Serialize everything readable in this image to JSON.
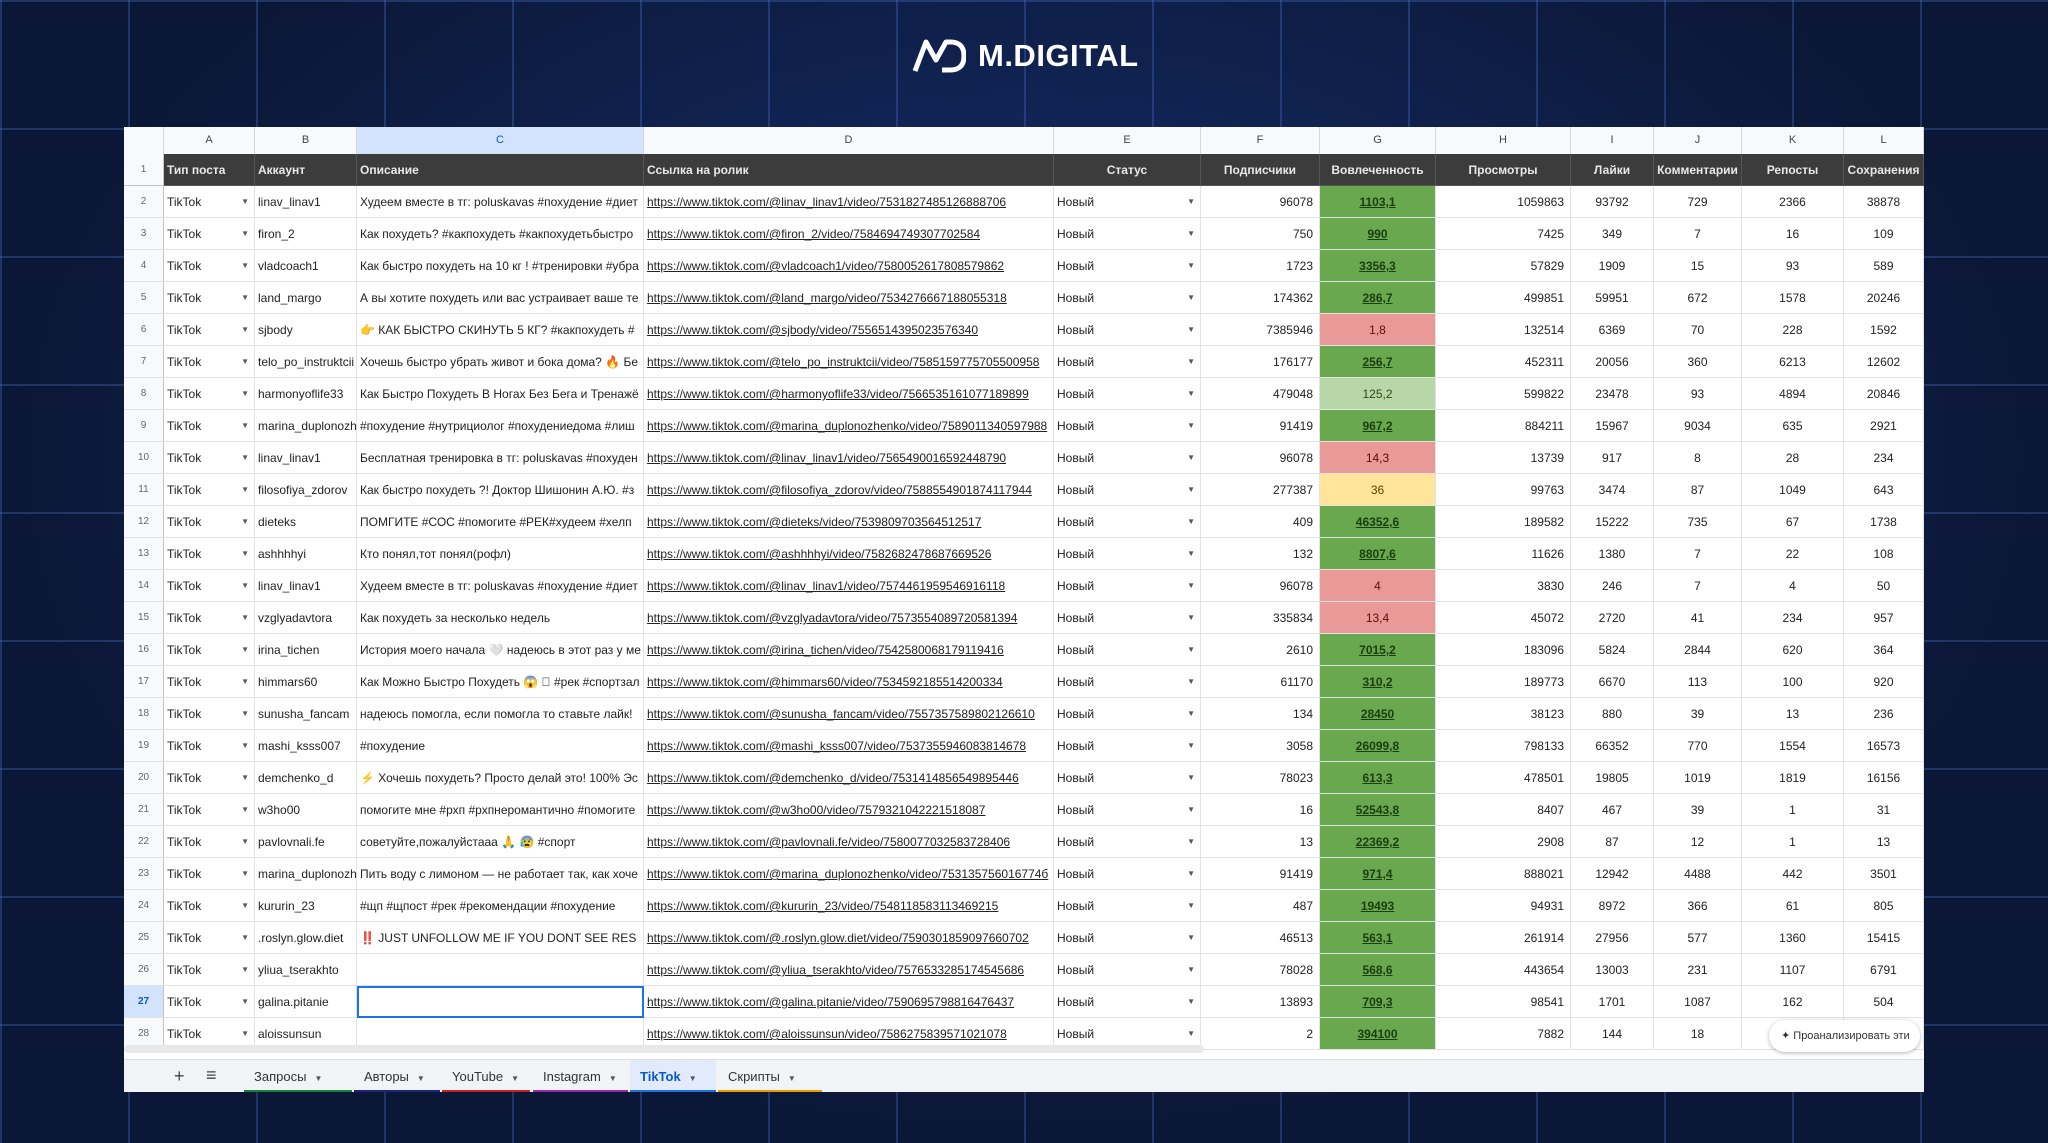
{
  "brand": {
    "name": "M.DIGITAL"
  },
  "columns": [
    "",
    "A",
    "B",
    "C",
    "D",
    "E",
    "F",
    "G",
    "H",
    "I",
    "J",
    "K",
    "L"
  ],
  "header": [
    "1",
    "Тип поста",
    "Аккаунт",
    "Описание",
    "Ссылка на ролик",
    "Статус",
    "Подписчики",
    "Вовлеченность",
    "Просмотры",
    "Лайки",
    "Комментарии",
    "Репосты",
    "Сохранения"
  ],
  "rows": [
    {
      "n": "2",
      "type": "TikTok",
      "account": "linav_linav1",
      "desc": "Худеем вместе в тг: poluskavas #похудение #диет",
      "link": "https://www.tiktok.com/@linav_linav1/video/7531827485126888706",
      "status": "Новый",
      "subs": "96078",
      "eng": "1103,1",
      "engc": "g",
      "views": "1059863",
      "likes": "93792",
      "comments": "729",
      "reposts": "2366",
      "saves": "38878"
    },
    {
      "n": "3",
      "type": "TikTok",
      "account": "firon_2",
      "desc": "Как похудеть? #какпохудеть #какпохудетьбыстро",
      "link": "https://www.tiktok.com/@firon_2/video/7584694749307702584",
      "status": "Новый",
      "subs": "750",
      "eng": "990",
      "engc": "g",
      "views": "7425",
      "likes": "349",
      "comments": "7",
      "reposts": "16",
      "saves": "109"
    },
    {
      "n": "4",
      "type": "TikTok",
      "account": "vladcoach1",
      "desc": "Как быстро похудеть на 10 кг ! #тренировки #убра",
      "link": "https://www.tiktok.com/@vladcoach1/video/7580052617808579862",
      "status": "Новый",
      "subs": "1723",
      "eng": "3356,3",
      "engc": "g",
      "views": "57829",
      "likes": "1909",
      "comments": "15",
      "reposts": "93",
      "saves": "589"
    },
    {
      "n": "5",
      "type": "TikTok",
      "account": "land_margo",
      "desc": "А вы хотите похудеть или вас устраивает ваше те",
      "link": "https://www.tiktok.com/@land_margo/video/7534276667188055318",
      "status": "Новый",
      "subs": "174362",
      "eng": "286,7",
      "engc": "g",
      "views": "499851",
      "likes": "59951",
      "comments": "672",
      "reposts": "1578",
      "saves": "20246"
    },
    {
      "n": "6",
      "type": "TikTok",
      "account": "sjbody",
      "desc": "👉 КАК БЫСТРО СКИНУТЬ 5 КГ? #какпохудеть #",
      "link": "https://www.tiktok.com/@sjbody/video/7556514395023576340",
      "status": "Новый",
      "subs": "7385946",
      "eng": "1,8",
      "engc": "r",
      "views": "132514",
      "likes": "6369",
      "comments": "70",
      "reposts": "228",
      "saves": "1592"
    },
    {
      "n": "7",
      "type": "TikTok",
      "account": "telo_po_instruktcii",
      "desc": "Хочешь быстро убрать живот и бока дома? 🔥 Бе",
      "link": "https://www.tiktok.com/@telo_po_instruktcii/video/7585159775705500958",
      "status": "Новый",
      "subs": "176177",
      "eng": "256,7",
      "engc": "g",
      "views": "452311",
      "likes": "20056",
      "comments": "360",
      "reposts": "6213",
      "saves": "12602"
    },
    {
      "n": "8",
      "type": "TikTok",
      "account": "harmonyoflife33",
      "desc": "Как Быстро Похудеть В Ногах Без Бега и Тренажё",
      "link": "https://www.tiktok.com/@harmonyoflife33/video/7566535161077189899",
      "status": "Новый",
      "subs": "479048",
      "eng": "125,2",
      "engc": "lg",
      "views": "599822",
      "likes": "23478",
      "comments": "93",
      "reposts": "4894",
      "saves": "20846"
    },
    {
      "n": "9",
      "type": "TikTok",
      "account": "marina_duplonozh",
      "desc": "#похудение #нутрициолог #похудениедома #лиш",
      "link": "https://www.tiktok.com/@marina_duplonozhenko/video/7589011340597988",
      "status": "Новый",
      "subs": "91419",
      "eng": "967,2",
      "engc": "g",
      "views": "884211",
      "likes": "15967",
      "comments": "9034",
      "reposts": "635",
      "saves": "2921"
    },
    {
      "n": "10",
      "type": "TikTok",
      "account": "linav_linav1",
      "desc": "Бесплатная тренировка в тг: poluskavas #похуден",
      "link": "https://www.tiktok.com/@linav_linav1/video/7565490016592448790",
      "status": "Новый",
      "subs": "96078",
      "eng": "14,3",
      "engc": "r",
      "views": "13739",
      "likes": "917",
      "comments": "8",
      "reposts": "28",
      "saves": "234"
    },
    {
      "n": "11",
      "type": "TikTok",
      "account": "filosofiya_zdorov",
      "desc": "Как быстро похудеть ?! Доктор Шишонин А.Ю. #з",
      "link": "https://www.tiktok.com/@filosofiya_zdorov/video/7588554901874117944",
      "status": "Новый",
      "subs": "277387",
      "eng": "36",
      "engc": "y",
      "views": "99763",
      "likes": "3474",
      "comments": "87",
      "reposts": "1049",
      "saves": "643"
    },
    {
      "n": "12",
      "type": "TikTok",
      "account": "dieteks",
      "desc": "ПОМГИТЕ #СОС #помогите #РЕК#худеем #хелп",
      "link": "https://www.tiktok.com/@dieteks/video/7539809703564512517",
      "status": "Новый",
      "subs": "409",
      "eng": "46352,6",
      "engc": "g",
      "views": "189582",
      "likes": "15222",
      "comments": "735",
      "reposts": "67",
      "saves": "1738"
    },
    {
      "n": "13",
      "type": "TikTok",
      "account": "ashhhhyi",
      "desc": "Кто понял,тот понял(рофл)",
      "link": "https://www.tiktok.com/@ashhhhyi/video/7582682478687669526",
      "status": "Новый",
      "subs": "132",
      "eng": "8807,6",
      "engc": "g",
      "views": "11626",
      "likes": "1380",
      "comments": "7",
      "reposts": "22",
      "saves": "108"
    },
    {
      "n": "14",
      "type": "TikTok",
      "account": "linav_linav1",
      "desc": "Худеем вместе в тг: poluskavas #похудение #диет",
      "link": "https://www.tiktok.com/@linav_linav1/video/7574461959546916118",
      "status": "Новый",
      "subs": "96078",
      "eng": "4",
      "engc": "r",
      "views": "3830",
      "likes": "246",
      "comments": "7",
      "reposts": "4",
      "saves": "50"
    },
    {
      "n": "15",
      "type": "TikTok",
      "account": "vzglyadavtora",
      "desc": "Как похудеть за несколько недель",
      "link": "https://www.tiktok.com/@vzglyadavtora/video/7573554089720581394",
      "status": "Новый",
      "subs": "335834",
      "eng": "13,4",
      "engc": "r",
      "views": "45072",
      "likes": "2720",
      "comments": "41",
      "reposts": "234",
      "saves": "957"
    },
    {
      "n": "16",
      "type": "TikTok",
      "account": "irina_tichen",
      "desc": "История моего начала 🤍 надеюсь в этот раз у ме",
      "link": "https://www.tiktok.com/@irina_tichen/video/7542580068179119416",
      "status": "Новый",
      "subs": "2610",
      "eng": "7015,2",
      "engc": "g",
      "views": "183096",
      "likes": "5824",
      "comments": "2844",
      "reposts": "620",
      "saves": "364"
    },
    {
      "n": "17",
      "type": "TikTok",
      "account": "himmars60",
      "desc": "Как Можно Быстро Похудеть 😱 🏻 #рек #спортзал",
      "link": "https://www.tiktok.com/@himmars60/video/7534592185514200334",
      "status": "Новый",
      "subs": "61170",
      "eng": "310,2",
      "engc": "g",
      "views": "189773",
      "likes": "6670",
      "comments": "113",
      "reposts": "100",
      "saves": "920"
    },
    {
      "n": "18",
      "type": "TikTok",
      "account": "sunusha_fancam",
      "desc": "надеюсь помогла, если помогла то ставьте лайк! ",
      "link": "https://www.tiktok.com/@sunusha_fancam/video/7557357589802126610",
      "status": "Новый",
      "subs": "134",
      "eng": "28450",
      "engc": "g",
      "views": "38123",
      "likes": "880",
      "comments": "39",
      "reposts": "13",
      "saves": "236"
    },
    {
      "n": "19",
      "type": "TikTok",
      "account": "mashi_ksss007",
      "desc": "#похудение",
      "link": "https://www.tiktok.com/@mashi_ksss007/video/7537355946083814678",
      "status": "Новый",
      "subs": "3058",
      "eng": "26099,8",
      "engc": "g",
      "views": "798133",
      "likes": "66352",
      "comments": "770",
      "reposts": "1554",
      "saves": "16573"
    },
    {
      "n": "20",
      "type": "TikTok",
      "account": "demchenko_d",
      "desc": "⚡ Хочешь похудеть? Просто делай это! 100% Эс",
      "link": "https://www.tiktok.com/@demchenko_d/video/7531414856549895446",
      "status": "Новый",
      "subs": "78023",
      "eng": "613,3",
      "engc": "g",
      "views": "478501",
      "likes": "19805",
      "comments": "1019",
      "reposts": "1819",
      "saves": "16156"
    },
    {
      "n": "21",
      "type": "TikTok",
      "account": "w3ho00",
      "desc": "помогите мне #рхп #рхпнеромантично #помогите",
      "link": "https://www.tiktok.com/@w3ho00/video/7579321042221518087",
      "status": "Новый",
      "subs": "16",
      "eng": "52543,8",
      "engc": "g",
      "views": "8407",
      "likes": "467",
      "comments": "39",
      "reposts": "1",
      "saves": "31"
    },
    {
      "n": "22",
      "type": "TikTok",
      "account": "pavlovnali.fe",
      "desc": "советуйте,пожалуйстааа 🙏 😰 #спорт",
      "link": "https://www.tiktok.com/@pavlovnali.fe/video/7580077032583728406",
      "status": "Новый",
      "subs": "13",
      "eng": "22369,2",
      "engc": "g",
      "views": "2908",
      "likes": "87",
      "comments": "12",
      "reposts": "1",
      "saves": "13"
    },
    {
      "n": "23",
      "type": "TikTok",
      "account": "marina_duplonozh",
      "desc": "Пить воду с лимоном — не работает так, как хоче",
      "link": "https://www.tiktok.com/@marina_duplonozhenko/video/753135756016774б",
      "status": "Новый",
      "subs": "91419",
      "eng": "971,4",
      "engc": "g",
      "views": "888021",
      "likes": "12942",
      "comments": "4488",
      "reposts": "442",
      "saves": "3501"
    },
    {
      "n": "24",
      "type": "TikTok",
      "account": "kururin_23",
      "desc": "#щп #щпост #рек #рекомендации #похудение",
      "link": "https://www.tiktok.com/@kururin_23/video/7548118583113469215",
      "status": "Новый",
      "subs": "487",
      "eng": "19493",
      "engc": "g",
      "views": "94931",
      "likes": "8972",
      "comments": "366",
      "reposts": "61",
      "saves": "805"
    },
    {
      "n": "25",
      "type": "TikTok",
      "account": ".roslyn.glow.diet",
      "desc": "‼️ JUST UNFOLLOW ME IF YOU DONT SEE RES",
      "link": "https://www.tiktok.com/@.roslyn.glow.diet/video/7590301859097660702",
      "status": "Новый",
      "subs": "46513",
      "eng": "563,1",
      "engc": "g",
      "views": "261914",
      "likes": "27956",
      "comments": "577",
      "reposts": "1360",
      "saves": "15415"
    },
    {
      "n": "26",
      "type": "TikTok",
      "account": "yliua_tserakhto",
      "desc": "",
      "link": "https://www.tiktok.com/@yliua_tserakhto/video/7576533285174545686",
      "status": "Новый",
      "subs": "78028",
      "eng": "568,6",
      "engc": "g",
      "views": "443654",
      "likes": "13003",
      "comments": "231",
      "reposts": "1107",
      "saves": "6791"
    },
    {
      "n": "27",
      "type": "TikTok",
      "account": "galina.pitanie",
      "desc": "",
      "link": "https://www.tiktok.com/@galina.pitanie/video/7590695798816476437",
      "status": "Новый",
      "subs": "13893",
      "eng": "709,3",
      "engc": "g",
      "views": "98541",
      "likes": "1701",
      "comments": "1087",
      "reposts": "162",
      "saves": "504"
    },
    {
      "n": "28",
      "type": "TikTok",
      "account": "aloissunsun",
      "desc": "",
      "link": "https://www.tiktok.com/@aloissunsun/video/7586275839571021078",
      "status": "Новый",
      "subs": "2",
      "eng": "394100",
      "engc": "g",
      "views": "7882",
      "likes": "144",
      "comments": "18",
      "reposts": "6",
      "saves": ""
    }
  ],
  "tabs": [
    {
      "label": "Запросы",
      "color": "#188038"
    },
    {
      "label": "Авторы",
      "color": "#1a237e"
    },
    {
      "label": "YouTube",
      "color": "#c5221f"
    },
    {
      "label": "Instagram",
      "color": "#9c27b0"
    },
    {
      "label": "TikTok",
      "color": "#1a73e8",
      "active": true
    },
    {
      "label": "Скрипты",
      "color": "#f29900"
    }
  ],
  "analyze_label": "Проанализировать эти",
  "colors": {
    "green": "#6aa84f",
    "light_green": "#b7d7a8",
    "red": "#ea9999",
    "yellow": "#ffe599"
  }
}
